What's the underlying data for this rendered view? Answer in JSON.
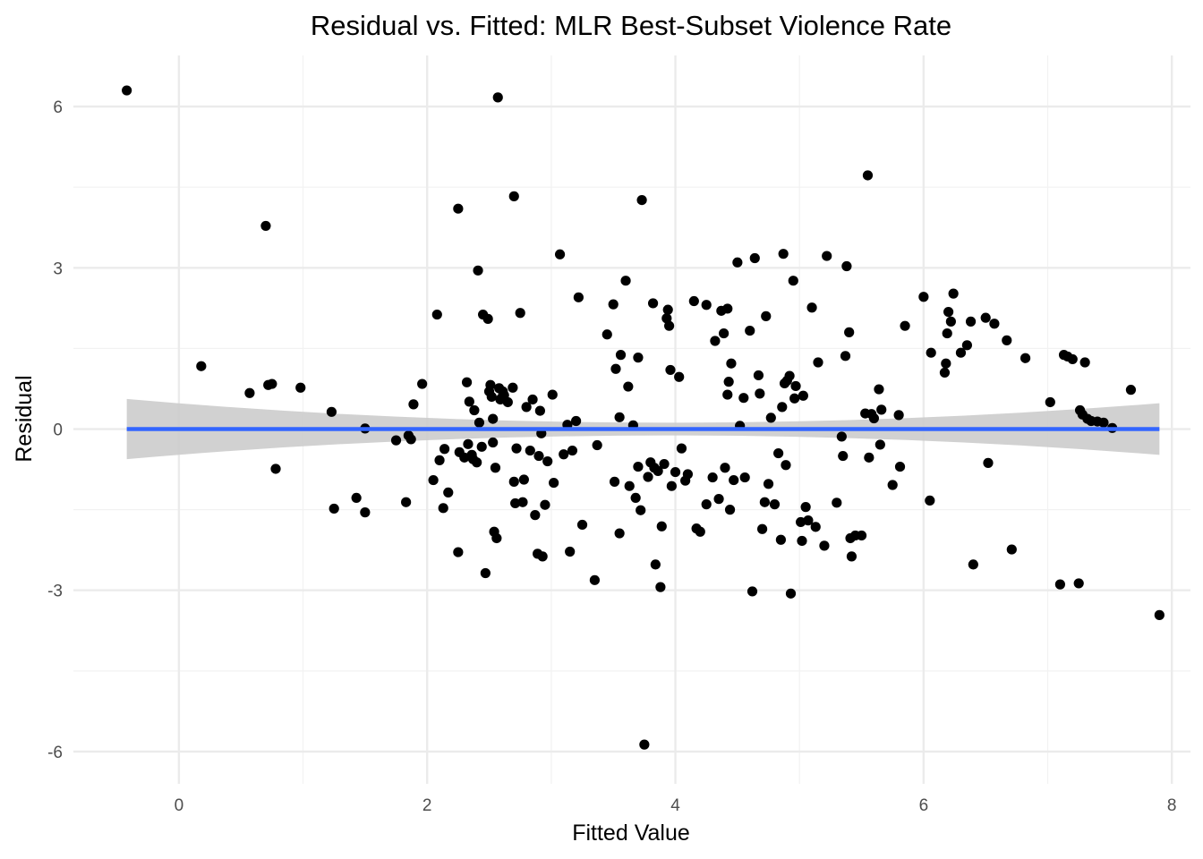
{
  "chart_data": {
    "type": "scatter",
    "title": "Residual vs. Fitted: MLR Best-Subset Violence Rate",
    "xlabel": "Fitted Value",
    "ylabel": "Residual",
    "xlim": [
      -0.85,
      8.15
    ],
    "ylim": [
      -6.6,
      6.95
    ],
    "x_ticks": [
      0,
      2,
      4,
      6,
      8
    ],
    "y_ticks": [
      -6,
      -3,
      0,
      3,
      6
    ],
    "x_tick_labels": [
      "0",
      "2",
      "4",
      "6",
      "8"
    ],
    "y_tick_labels": [
      "-6",
      "-3",
      "0",
      "3",
      "6"
    ],
    "grid": true,
    "point_color": "#000000",
    "fit_line_color": "#3366ff",
    "band_color": "#cccccc",
    "fit": {
      "x": [
        -0.42,
        7.9
      ],
      "y": [
        0,
        0
      ],
      "band_upper": [
        0.56,
        0.48
      ],
      "band_lower": [
        -0.56,
        -0.48
      ],
      "band_mid_halfwidth": 0.12
    },
    "points": [
      [
        -0.42,
        6.3
      ],
      [
        0.18,
        1.17
      ],
      [
        0.57,
        0.67
      ],
      [
        0.7,
        3.78
      ],
      [
        0.72,
        0.82
      ],
      [
        0.75,
        0.84
      ],
      [
        0.78,
        -0.74
      ],
      [
        0.98,
        0.77
      ],
      [
        1.23,
        0.32
      ],
      [
        1.25,
        -1.48
      ],
      [
        1.43,
        -1.28
      ],
      [
        1.5,
        0.01
      ],
      [
        1.5,
        -1.55
      ],
      [
        1.75,
        -0.21
      ],
      [
        1.83,
        -1.36
      ],
      [
        1.85,
        -0.12
      ],
      [
        1.87,
        -0.19
      ],
      [
        1.89,
        0.46
      ],
      [
        1.96,
        0.84
      ],
      [
        2.05,
        -0.95
      ],
      [
        2.08,
        2.13
      ],
      [
        2.1,
        -0.58
      ],
      [
        2.13,
        -1.47
      ],
      [
        2.14,
        -0.37
      ],
      [
        2.17,
        -1.18
      ],
      [
        2.25,
        4.1
      ],
      [
        2.25,
        -2.29
      ],
      [
        2.26,
        -0.43
      ],
      [
        2.3,
        -0.53
      ],
      [
        2.32,
        0.87
      ],
      [
        2.33,
        -0.28
      ],
      [
        2.34,
        0.51
      ],
      [
        2.36,
        -0.48
      ],
      [
        2.37,
        -0.56
      ],
      [
        2.38,
        0.35
      ],
      [
        2.4,
        -0.62
      ],
      [
        2.41,
        2.95
      ],
      [
        2.42,
        0.12
      ],
      [
        2.44,
        -0.33
      ],
      [
        2.45,
        2.13
      ],
      [
        2.47,
        -2.68
      ],
      [
        2.49,
        2.05
      ],
      [
        2.5,
        0.7
      ],
      [
        2.51,
        0.82
      ],
      [
        2.52,
        0.6
      ],
      [
        2.53,
        -0.25
      ],
      [
        2.53,
        0.19
      ],
      [
        2.54,
        -1.91
      ],
      [
        2.55,
        -0.72
      ],
      [
        2.56,
        -2.03
      ],
      [
        2.57,
        6.17
      ],
      [
        2.58,
        0.76
      ],
      [
        2.59,
        0.55
      ],
      [
        2.6,
        0.58
      ],
      [
        2.61,
        0.7
      ],
      [
        2.62,
        0.63
      ],
      [
        2.65,
        0.5
      ],
      [
        2.69,
        0.77
      ],
      [
        2.7,
        4.33
      ],
      [
        2.7,
        -0.98
      ],
      [
        2.71,
        -1.38
      ],
      [
        2.72,
        -0.36
      ],
      [
        2.75,
        2.16
      ],
      [
        2.77,
        -1.36
      ],
      [
        2.78,
        -0.94
      ],
      [
        2.8,
        0.41
      ],
      [
        2.83,
        -0.4
      ],
      [
        2.85,
        0.55
      ],
      [
        2.87,
        -1.6
      ],
      [
        2.89,
        -2.32
      ],
      [
        2.9,
        -0.5
      ],
      [
        2.91,
        0.34
      ],
      [
        2.92,
        -0.08
      ],
      [
        2.93,
        -2.37
      ],
      [
        2.95,
        -1.41
      ],
      [
        2.97,
        -0.6
      ],
      [
        3.01,
        0.64
      ],
      [
        3.02,
        -1.0
      ],
      [
        3.07,
        3.25
      ],
      [
        3.1,
        -0.47
      ],
      [
        3.13,
        0.08
      ],
      [
        3.15,
        -2.28
      ],
      [
        3.17,
        -0.4
      ],
      [
        3.2,
        0.15
      ],
      [
        3.22,
        2.45
      ],
      [
        3.25,
        -1.78
      ],
      [
        3.35,
        -2.81
      ],
      [
        3.37,
        -0.3
      ],
      [
        3.45,
        1.76
      ],
      [
        3.5,
        2.32
      ],
      [
        3.51,
        -0.98
      ],
      [
        3.52,
        1.12
      ],
      [
        3.55,
        0.22
      ],
      [
        3.55,
        -1.94
      ],
      [
        3.56,
        1.38
      ],
      [
        3.6,
        2.76
      ],
      [
        3.62,
        0.79
      ],
      [
        3.63,
        -1.06
      ],
      [
        3.66,
        0.07
      ],
      [
        3.68,
        -1.28
      ],
      [
        3.7,
        1.33
      ],
      [
        3.7,
        -0.7
      ],
      [
        3.72,
        -1.51
      ],
      [
        3.73,
        4.26
      ],
      [
        3.75,
        -5.87
      ],
      [
        3.78,
        -0.89
      ],
      [
        3.8,
        -0.62
      ],
      [
        3.82,
        2.34
      ],
      [
        3.83,
        -0.72
      ],
      [
        3.84,
        -2.52
      ],
      [
        3.86,
        -0.78
      ],
      [
        3.88,
        -2.94
      ],
      [
        3.89,
        -1.81
      ],
      [
        3.91,
        -0.65
      ],
      [
        3.93,
        2.06
      ],
      [
        3.94,
        2.22
      ],
      [
        3.95,
        1.92
      ],
      [
        3.96,
        1.1
      ],
      [
        3.97,
        -1.06
      ],
      [
        4.0,
        -0.8
      ],
      [
        4.03,
        0.97
      ],
      [
        4.05,
        -0.36
      ],
      [
        4.08,
        -0.96
      ],
      [
        4.1,
        -0.84
      ],
      [
        4.15,
        2.38
      ],
      [
        4.17,
        -1.85
      ],
      [
        4.2,
        -1.91
      ],
      [
        4.25,
        2.31
      ],
      [
        4.25,
        -1.4
      ],
      [
        4.3,
        -0.9
      ],
      [
        4.32,
        1.64
      ],
      [
        4.35,
        -1.3
      ],
      [
        4.37,
        2.2
      ],
      [
        4.39,
        1.78
      ],
      [
        4.4,
        -0.72
      ],
      [
        4.42,
        2.24
      ],
      [
        4.42,
        0.64
      ],
      [
        4.43,
        0.88
      ],
      [
        4.44,
        -1.5
      ],
      [
        4.45,
        1.22
      ],
      [
        4.47,
        -0.95
      ],
      [
        4.5,
        3.1
      ],
      [
        4.52,
        0.06
      ],
      [
        4.55,
        0.58
      ],
      [
        4.56,
        -0.9
      ],
      [
        4.6,
        1.83
      ],
      [
        4.62,
        -3.02
      ],
      [
        4.64,
        3.18
      ],
      [
        4.67,
        1.0
      ],
      [
        4.68,
        0.66
      ],
      [
        4.7,
        -1.86
      ],
      [
        4.72,
        -1.36
      ],
      [
        4.73,
        2.1
      ],
      [
        4.75,
        -1.02
      ],
      [
        4.77,
        0.21
      ],
      [
        4.8,
        -1.4
      ],
      [
        4.83,
        -0.45
      ],
      [
        4.85,
        -2.06
      ],
      [
        4.86,
        0.41
      ],
      [
        4.87,
        3.26
      ],
      [
        4.88,
        0.85
      ],
      [
        4.89,
        -0.67
      ],
      [
        4.9,
        0.9
      ],
      [
        4.92,
        0.99
      ],
      [
        4.93,
        -3.06
      ],
      [
        4.95,
        2.76
      ],
      [
        4.96,
        0.57
      ],
      [
        4.97,
        0.8
      ],
      [
        5.01,
        -1.73
      ],
      [
        5.02,
        -2.08
      ],
      [
        5.03,
        0.62
      ],
      [
        5.05,
        -1.45
      ],
      [
        5.07,
        -1.7
      ],
      [
        5.1,
        2.26
      ],
      [
        5.13,
        -1.82
      ],
      [
        5.15,
        1.24
      ],
      [
        5.2,
        -2.17
      ],
      [
        5.22,
        3.22
      ],
      [
        5.3,
        -1.37
      ],
      [
        5.34,
        -0.14
      ],
      [
        5.35,
        -0.5
      ],
      [
        5.37,
        1.36
      ],
      [
        5.38,
        3.03
      ],
      [
        5.4,
        1.8
      ],
      [
        5.41,
        -2.03
      ],
      [
        5.42,
        -2.37
      ],
      [
        5.45,
        -1.98
      ],
      [
        5.5,
        -1.98
      ],
      [
        5.53,
        0.29
      ],
      [
        5.55,
        4.72
      ],
      [
        5.56,
        -0.53
      ],
      [
        5.58,
        0.28
      ],
      [
        5.6,
        0.2
      ],
      [
        5.64,
        0.74
      ],
      [
        5.65,
        -0.29
      ],
      [
        5.66,
        0.36
      ],
      [
        5.75,
        -1.04
      ],
      [
        5.8,
        0.26
      ],
      [
        5.81,
        -0.7
      ],
      [
        5.85,
        1.92
      ],
      [
        6.0,
        2.46
      ],
      [
        6.05,
        -1.33
      ],
      [
        6.06,
        1.42
      ],
      [
        6.17,
        1.05
      ],
      [
        6.18,
        1.22
      ],
      [
        6.19,
        1.78
      ],
      [
        6.2,
        2.18
      ],
      [
        6.22,
        2.0
      ],
      [
        6.24,
        2.52
      ],
      [
        6.3,
        1.42
      ],
      [
        6.35,
        1.56
      ],
      [
        6.38,
        2.0
      ],
      [
        6.4,
        -2.52
      ],
      [
        6.5,
        2.07
      ],
      [
        6.52,
        -0.63
      ],
      [
        6.57,
        1.96
      ],
      [
        6.67,
        1.65
      ],
      [
        6.71,
        -2.24
      ],
      [
        6.82,
        1.32
      ],
      [
        7.02,
        0.5
      ],
      [
        7.1,
        -2.89
      ],
      [
        7.13,
        1.38
      ],
      [
        7.16,
        1.35
      ],
      [
        7.2,
        1.3
      ],
      [
        7.25,
        -2.87
      ],
      [
        7.26,
        0.35
      ],
      [
        7.28,
        0.27
      ],
      [
        7.3,
        1.24
      ],
      [
        7.32,
        0.19
      ],
      [
        7.35,
        0.15
      ],
      [
        7.4,
        0.14
      ],
      [
        7.45,
        0.12
      ],
      [
        7.52,
        0.02
      ],
      [
        7.67,
        0.73
      ],
      [
        7.9,
        -3.46
      ]
    ]
  }
}
